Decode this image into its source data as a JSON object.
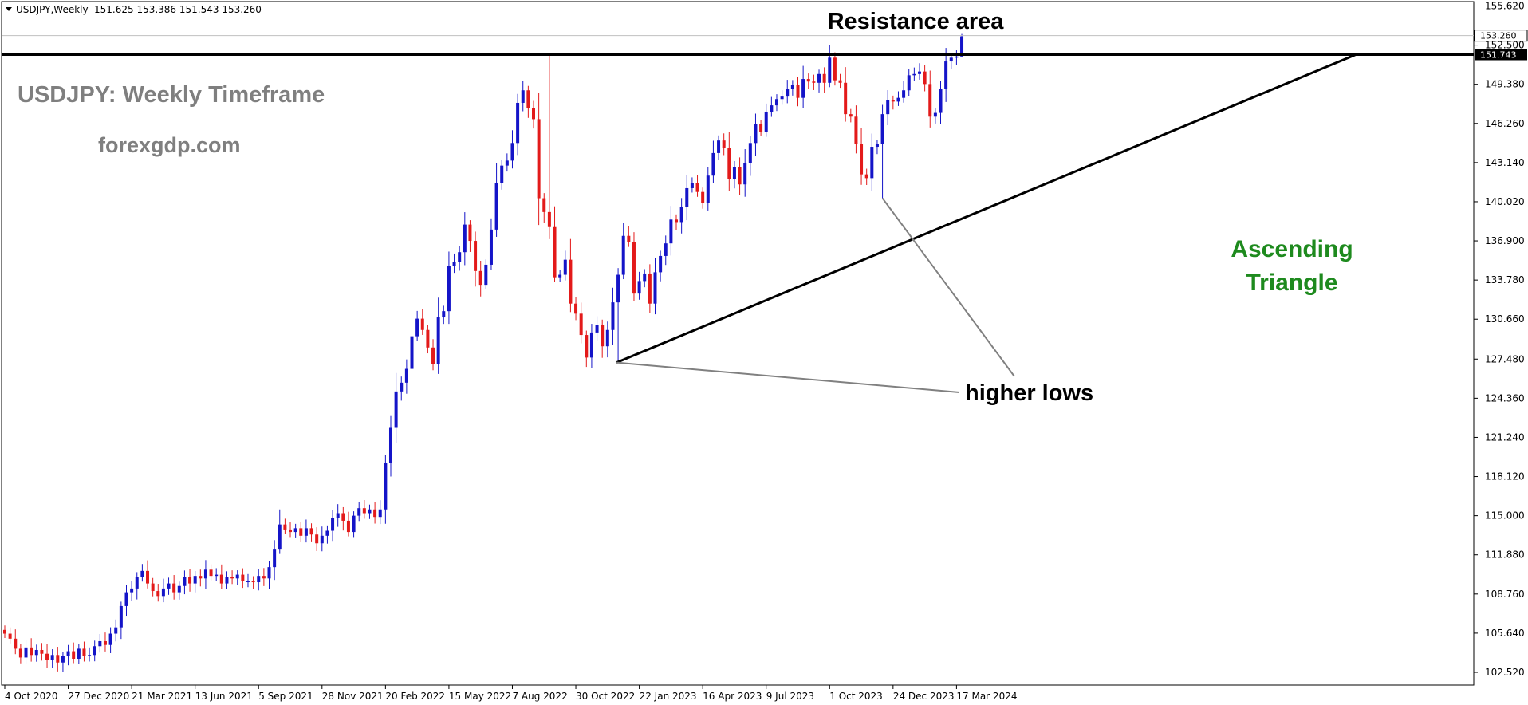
{
  "info_bar": {
    "symbol": "USDJPY,Weekly",
    "ohlc": "151.625 153.386 151.543 153.260"
  },
  "chart_data": {
    "type": "candlestick",
    "title": "USDJPY: Weekly Timeframe",
    "ylim": [
      101.0,
      157.0
    ],
    "y_ticks": [
      "155.620",
      "152.500",
      "149.380",
      "146.260",
      "143.140",
      "140.020",
      "136.900",
      "133.780",
      "130.660",
      "127.480",
      "124.360",
      "121.240",
      "118.120",
      "115.000",
      "111.880",
      "108.760",
      "105.640",
      "102.520"
    ],
    "x_ticks": [
      "4 Oct 2020",
      "27 Dec 2020",
      "21 Mar 2021",
      "13 Jun 2021",
      "5 Sep 2021",
      "28 Nov 2021",
      "20 Feb 2022",
      "15 May 2022",
      "7 Aug 2022",
      "30 Oct 2022",
      "22 Jan 2023",
      "16 Apr 2023",
      "9 Jul 2023",
      "1 Oct 2023",
      "24 Dec 2023",
      "17 Mar 2024"
    ],
    "grid": false,
    "price_labels": {
      "current": "153.260",
      "resistance": "151.743"
    },
    "up_color": "#1414c8",
    "down_color": "#e31a1a",
    "closes": [
      105.6,
      105.2,
      104.4,
      103.7,
      104.5,
      103.9,
      104.3,
      104.0,
      103.5,
      103.9,
      103.3,
      103.8,
      104.2,
      103.6,
      104.4,
      103.8,
      103.9,
      104.6,
      105.0,
      104.7,
      105.6,
      106.1,
      107.8,
      108.9,
      109.2,
      110.1,
      110.6,
      109.6,
      109.0,
      108.6,
      109.2,
      109.6,
      108.9,
      109.4,
      110.1,
      109.6,
      110.2,
      110.0,
      110.7,
      110.2,
      110.3,
      109.6,
      110.1,
      110.0,
      110.3,
      109.8,
      109.8,
      109.7,
      110.2,
      110.0,
      110.9,
      112.3,
      114.3,
      113.9,
      113.7,
      114.0,
      113.4,
      114.0,
      113.5,
      112.8,
      113.4,
      113.8,
      114.8,
      115.2,
      114.6,
      113.7,
      115.0,
      115.6,
      115.2,
      115.5,
      114.9,
      115.5,
      119.2,
      122.0,
      124.9,
      125.6,
      126.7,
      129.3,
      130.7,
      129.8,
      128.4,
      127.1,
      130.8,
      131.3,
      134.9,
      135.2,
      136.0,
      138.2,
      136.9,
      134.5,
      133.4,
      135.0,
      137.8,
      141.5,
      142.9,
      143.3,
      144.7,
      147.9,
      148.9,
      147.5,
      146.6,
      140.3,
      139.2,
      138.0,
      134.0,
      134.2,
      135.4,
      131.9,
      131.1,
      129.4,
      127.6,
      129.6,
      130.2,
      128.5,
      129.8,
      132.0,
      134.2,
      137.3,
      136.8,
      132.7,
      133.7,
      134.3,
      131.9,
      134.4,
      135.7,
      136.7,
      138.6,
      138.4,
      139.6,
      141.1,
      141.5,
      140.8,
      139.9,
      142.1,
      143.9,
      144.9,
      144.3,
      141.8,
      142.8,
      141.4,
      143.1,
      144.7,
      146.2,
      145.6,
      147.2,
      147.7,
      148.2,
      148.4,
      149.0,
      149.3,
      148.3,
      149.8,
      149.6,
      149.5,
      150.2,
      149.5,
      151.5,
      149.7,
      149.5,
      147.0,
      146.8,
      144.6,
      142.2,
      141.9,
      144.4,
      144.6,
      147.0,
      148.1,
      148.0,
      148.3,
      148.9,
      150.1,
      150.2,
      150.4,
      149.4,
      146.8,
      147.1,
      149.0,
      151.2,
      151.5,
      151.6,
      153.2
    ],
    "swing_levels": {
      "high_2022": 151.9,
      "low_2023_jan": 127.2,
      "low_2023_dec": 140.3
    }
  },
  "annotations": {
    "resistance": "Resistance area",
    "title": "USDJPY: Weekly Timeframe",
    "site": "forexgdp.com",
    "pattern_line1": "Ascending",
    "pattern_line2": "Triangle",
    "higher_lows": "higher lows"
  }
}
